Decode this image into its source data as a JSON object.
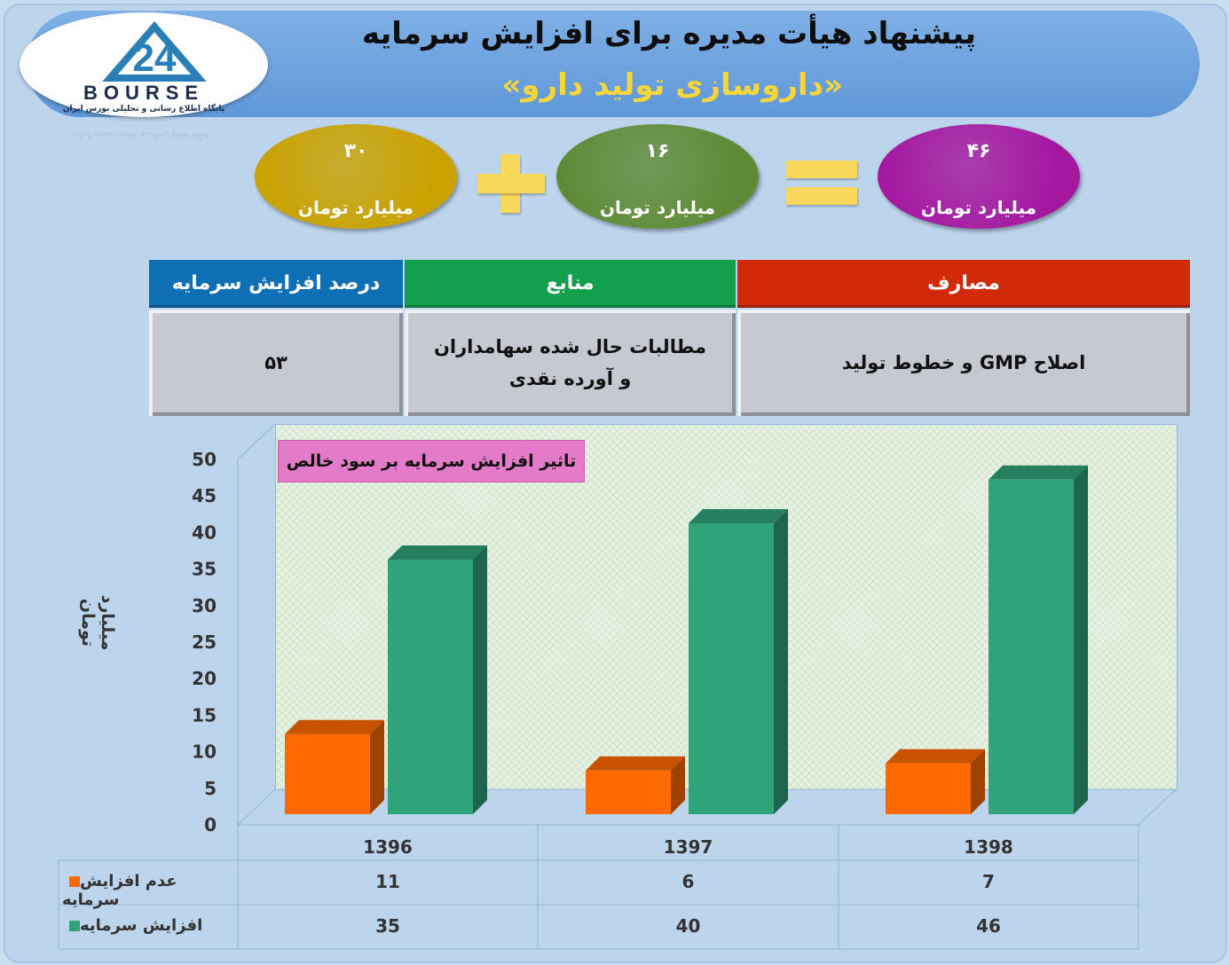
{
  "header": {
    "title": "پیشنهاد هیأت مدیره برای افزایش سرمایه",
    "subtitle": "«داروسازی تولید دارو»"
  },
  "logo": {
    "text": "BOURSE",
    "number": "24",
    "tagline": "پایگاه اطلاع رسانی و تحلیلی بورس ایران"
  },
  "ovals": [
    {
      "number": "۳۰",
      "unit": "میلیارد تومان",
      "color": "#c9a200"
    },
    {
      "number": "۱۶",
      "unit": "میلیارد تومان",
      "color": "#5e8a35"
    },
    {
      "number": "۴۶",
      "unit": "میلیارد تومان",
      "color": "#a4179f"
    }
  ],
  "symbols": {
    "plus": "plus-icon",
    "equals": "equals-icon",
    "color": "#f7d85b"
  },
  "table": {
    "headers": [
      {
        "label": "درصد افزایش سرمایه",
        "color": "#0f6fb5"
      },
      {
        "label": "منابع",
        "color": "#13a04e"
      },
      {
        "label": "مصارف",
        "color": "#d12a0a"
      }
    ],
    "values": [
      "۵۳",
      "مطالبات حال شده سهامداران و آورده نقدی",
      "اصلاح GMP و خطوط تولید"
    ]
  },
  "chart_data": {
    "type": "bar",
    "title": "تاثیر افزایش سرمایه بر سود خالص",
    "ylabel": "میلیارد تومان",
    "xlabel": "",
    "categories": [
      "1396",
      "1397",
      "1398"
    ],
    "series": [
      {
        "name": "عدم افزایش سرمایه",
        "values": [
          11,
          6,
          7
        ],
        "color": "#ff6a00"
      },
      {
        "name": "افزایش سرمایه",
        "values": [
          35,
          40,
          46
        ],
        "color": "#2fa37a"
      }
    ],
    "ylim": [
      0,
      50
    ],
    "yticks": [
      0,
      5,
      10,
      15,
      20,
      25,
      30,
      35,
      40,
      45,
      50
    ],
    "grid": false,
    "data_table": true
  }
}
